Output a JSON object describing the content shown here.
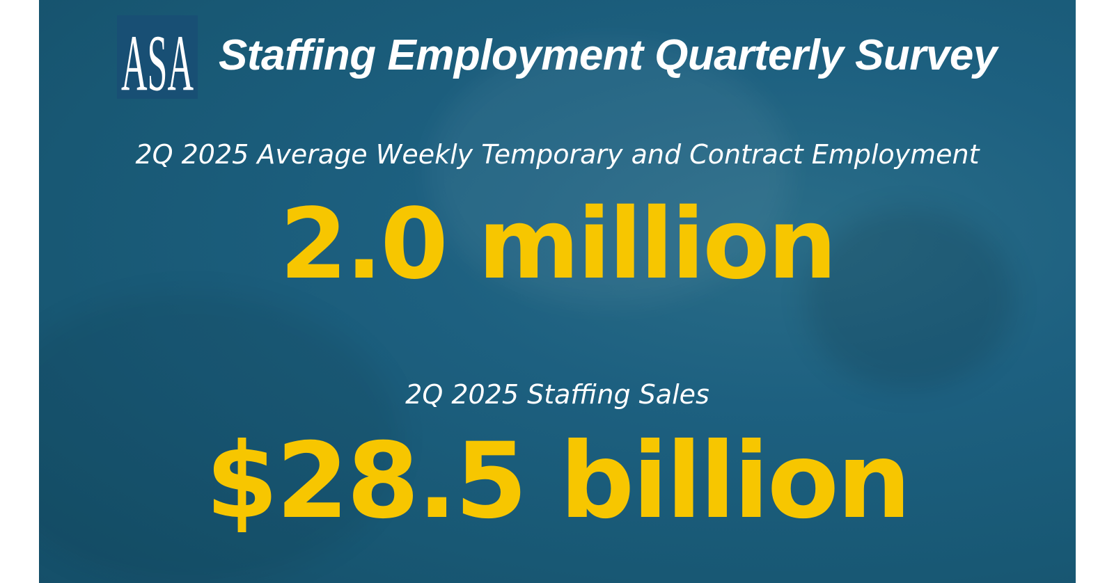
{
  "header": {
    "logo": "ASA",
    "title": "Staffing Employment Quarterly Survey"
  },
  "stats": [
    {
      "label": "2Q 2025 Average Weekly Temporary and Contract Employment",
      "value": "2.0 million"
    },
    {
      "label": "2Q 2025 Staffing Sales",
      "value": "$28.5 billion"
    }
  ]
}
